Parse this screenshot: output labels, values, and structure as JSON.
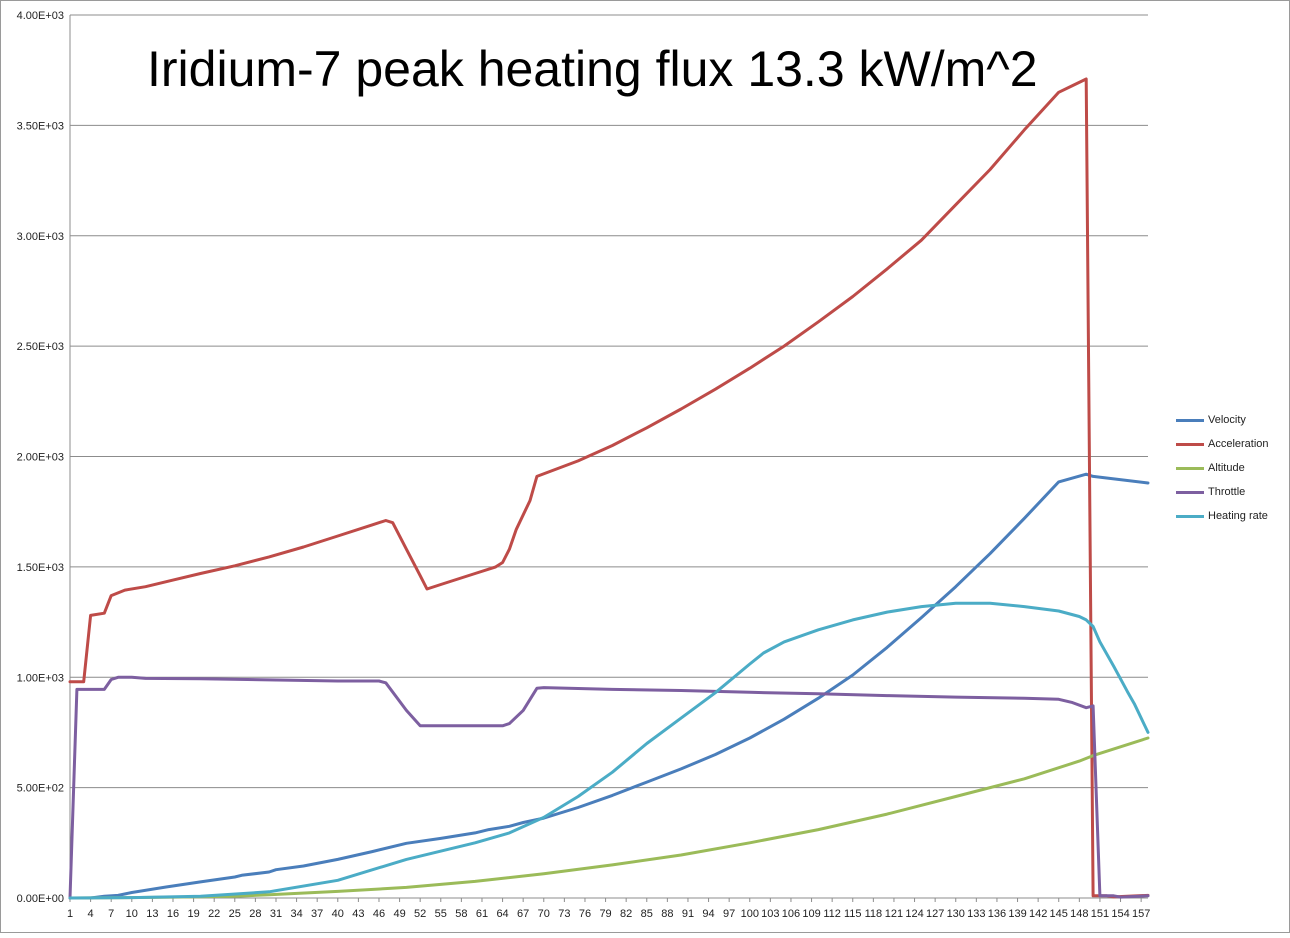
{
  "chart_data": {
    "type": "line",
    "title": "Iridium-7 peak heating flux 13.3 kW/m^2",
    "xlabel": "",
    "ylabel": "",
    "ylim": [
      0,
      4000
    ],
    "grid": true,
    "legend_position": "right",
    "y_ticks": [
      "0.00E+00",
      "5.00E+02",
      "1.00E+03",
      "1.50E+03",
      "2.00E+03",
      "2.50E+03",
      "3.00E+03",
      "3.50E+03",
      "4.00E+03"
    ],
    "x_range": [
      1,
      158
    ],
    "x_ticks": [
      1,
      4,
      7,
      10,
      13,
      16,
      19,
      22,
      25,
      28,
      31,
      34,
      37,
      40,
      43,
      46,
      49,
      52,
      55,
      58,
      61,
      64,
      67,
      70,
      73,
      76,
      79,
      82,
      85,
      88,
      91,
      94,
      97,
      100,
      103,
      106,
      109,
      112,
      115,
      118,
      121,
      124,
      127,
      130,
      133,
      136,
      139,
      142,
      145,
      148,
      151,
      154,
      157
    ],
    "series": [
      {
        "name": "Velocity",
        "color": "#4A7EBB",
        "points": [
          [
            1,
            0
          ],
          [
            4,
            0
          ],
          [
            6,
            8
          ],
          [
            8,
            12
          ],
          [
            10,
            25
          ],
          [
            15,
            50
          ],
          [
            20,
            73
          ],
          [
            25,
            95
          ],
          [
            26,
            103
          ],
          [
            30,
            118
          ],
          [
            31,
            128
          ],
          [
            35,
            145
          ],
          [
            40,
            175
          ],
          [
            45,
            210
          ],
          [
            50,
            248
          ],
          [
            55,
            270
          ],
          [
            60,
            295
          ],
          [
            62,
            310
          ],
          [
            65,
            325
          ],
          [
            67,
            342
          ],
          [
            70,
            362
          ],
          [
            75,
            410
          ],
          [
            80,
            465
          ],
          [
            85,
            525
          ],
          [
            90,
            585
          ],
          [
            95,
            650
          ],
          [
            100,
            725
          ],
          [
            105,
            810
          ],
          [
            110,
            905
          ],
          [
            115,
            1010
          ],
          [
            120,
            1135
          ],
          [
            125,
            1270
          ],
          [
            130,
            1410
          ],
          [
            135,
            1560
          ],
          [
            140,
            1720
          ],
          [
            145,
            1885
          ],
          [
            149,
            1920
          ],
          [
            150,
            1910
          ],
          [
            158,
            1880
          ]
        ]
      },
      {
        "name": "Acceleration",
        "color": "#BE4B48",
        "points": [
          [
            1,
            980
          ],
          [
            3,
            980
          ],
          [
            4,
            1280
          ],
          [
            6,
            1290
          ],
          [
            7,
            1370
          ],
          [
            9,
            1395
          ],
          [
            12,
            1410
          ],
          [
            16,
            1440
          ],
          [
            20,
            1470
          ],
          [
            25,
            1505
          ],
          [
            30,
            1545
          ],
          [
            35,
            1590
          ],
          [
            40,
            1640
          ],
          [
            45,
            1690
          ],
          [
            47,
            1710
          ],
          [
            48,
            1700
          ],
          [
            50,
            1580
          ],
          [
            52,
            1460
          ],
          [
            53,
            1400
          ],
          [
            55,
            1420
          ],
          [
            60,
            1470
          ],
          [
            63,
            1500
          ],
          [
            64,
            1520
          ],
          [
            65,
            1580
          ],
          [
            66,
            1670
          ],
          [
            68,
            1800
          ],
          [
            69,
            1910
          ],
          [
            75,
            1980
          ],
          [
            80,
            2050
          ],
          [
            85,
            2130
          ],
          [
            90,
            2215
          ],
          [
            95,
            2305
          ],
          [
            100,
            2400
          ],
          [
            105,
            2500
          ],
          [
            110,
            2610
          ],
          [
            115,
            2725
          ],
          [
            120,
            2850
          ],
          [
            125,
            2980
          ],
          [
            130,
            3140
          ],
          [
            135,
            3300
          ],
          [
            140,
            3480
          ],
          [
            145,
            3650
          ],
          [
            147,
            3680
          ],
          [
            149,
            3710
          ],
          [
            150,
            10
          ],
          [
            152,
            10
          ],
          [
            153,
            5
          ],
          [
            155,
            8
          ],
          [
            158,
            12
          ]
        ]
      },
      {
        "name": "Altitude",
        "color": "#9BBB59",
        "points": [
          [
            1,
            0
          ],
          [
            15,
            3
          ],
          [
            25,
            8
          ],
          [
            30,
            15
          ],
          [
            40,
            30
          ],
          [
            50,
            48
          ],
          [
            60,
            75
          ],
          [
            70,
            110
          ],
          [
            80,
            150
          ],
          [
            90,
            195
          ],
          [
            100,
            250
          ],
          [
            110,
            310
          ],
          [
            120,
            380
          ],
          [
            130,
            460
          ],
          [
            140,
            540
          ],
          [
            148,
            620
          ],
          [
            150,
            645
          ],
          [
            158,
            725
          ]
        ]
      },
      {
        "name": "Throttle",
        "color": "#7D5FA0",
        "points": [
          [
            1,
            0
          ],
          [
            2,
            945
          ],
          [
            6,
            945
          ],
          [
            7,
            990
          ],
          [
            8,
            1000
          ],
          [
            10,
            1000
          ],
          [
            12,
            995
          ],
          [
            20,
            993
          ],
          [
            30,
            988
          ],
          [
            40,
            983
          ],
          [
            46,
            983
          ],
          [
            47,
            975
          ],
          [
            50,
            850
          ],
          [
            52,
            780
          ],
          [
            64,
            780
          ],
          [
            65,
            790
          ],
          [
            67,
            850
          ],
          [
            69,
            950
          ],
          [
            70,
            953
          ],
          [
            80,
            945
          ],
          [
            90,
            940
          ],
          [
            100,
            932
          ],
          [
            110,
            925
          ],
          [
            120,
            917
          ],
          [
            130,
            910
          ],
          [
            140,
            905
          ],
          [
            145,
            900
          ],
          [
            147,
            885
          ],
          [
            149,
            862
          ],
          [
            150,
            870
          ],
          [
            151,
            10
          ],
          [
            153,
            10
          ],
          [
            154,
            4
          ],
          [
            158,
            10
          ]
        ]
      },
      {
        "name": "Heating rate",
        "color": "#4BACC6",
        "points": [
          [
            1,
            0
          ],
          [
            10,
            2
          ],
          [
            20,
            8
          ],
          [
            30,
            28
          ],
          [
            40,
            80
          ],
          [
            50,
            175
          ],
          [
            60,
            250
          ],
          [
            65,
            295
          ],
          [
            70,
            365
          ],
          [
            75,
            460
          ],
          [
            80,
            570
          ],
          [
            85,
            700
          ],
          [
            90,
            815
          ],
          [
            95,
            930
          ],
          [
            100,
            1060
          ],
          [
            102,
            1110
          ],
          [
            105,
            1160
          ],
          [
            110,
            1215
          ],
          [
            115,
            1260
          ],
          [
            120,
            1295
          ],
          [
            125,
            1320
          ],
          [
            130,
            1335
          ],
          [
            135,
            1335
          ],
          [
            140,
            1320
          ],
          [
            145,
            1300
          ],
          [
            148,
            1275
          ],
          [
            149,
            1260
          ],
          [
            150,
            1230
          ],
          [
            151,
            1160
          ],
          [
            153,
            1050
          ],
          [
            155,
            935
          ],
          [
            156,
            880
          ],
          [
            158,
            750
          ]
        ]
      }
    ]
  }
}
